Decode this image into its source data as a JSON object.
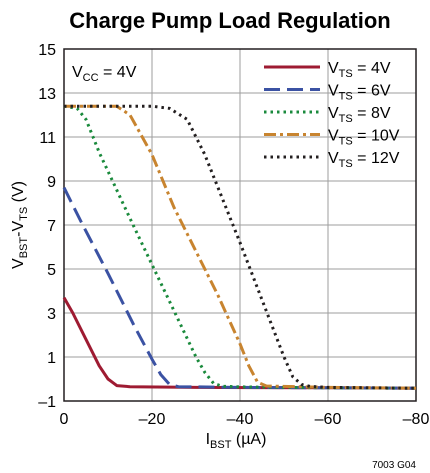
{
  "chart_data": {
    "type": "line",
    "title": "Charge Pump Load Regulation",
    "xlabel": {
      "main": "I",
      "sub": "BST",
      "unit": " (µA)"
    },
    "ylabel": {
      "main": "V",
      "sub": "BST",
      "mid": "-V",
      "sub2": "TS",
      "unit": " (V)"
    },
    "annotation": {
      "main": "V",
      "sub": "CC",
      "rest": " = 4V"
    },
    "figure_code": "7003 G04",
    "xlim": [
      0,
      -80
    ],
    "ylim": [
      -1,
      15
    ],
    "x_ticks": [
      0,
      -20,
      -40,
      -60,
      -80
    ],
    "x_tick_labels": [
      "0",
      "–20",
      "–40",
      "–60",
      "–80"
    ],
    "y_ticks": [
      -1,
      1,
      3,
      5,
      7,
      9,
      11,
      13,
      15
    ],
    "y_tick_labels": [
      "–1",
      "1",
      "3",
      "5",
      "7",
      "9",
      "11",
      "13",
      "15"
    ],
    "grid": true,
    "legend_position": "top-right",
    "series": [
      {
        "name": "V_TS = 4V",
        "label_main": "V",
        "label_sub": "TS",
        "label_rest": " = 4V",
        "color": "#9e1b32",
        "dash": "solid",
        "x": [
          0,
          -2,
          -5,
          -8,
          -10,
          -12,
          -15,
          -30,
          -60,
          -80
        ],
        "y": [
          3.7,
          3.0,
          1.8,
          0.6,
          0.0,
          -0.3,
          -0.35,
          -0.38,
          -0.4,
          -0.42
        ]
      },
      {
        "name": "V_TS = 6V",
        "label_main": "V",
        "label_sub": "TS",
        "label_rest": " = 6V",
        "color": "#3b52a3",
        "dash": "longdash",
        "x": [
          0,
          -4,
          -10,
          -16,
          -20,
          -22,
          -24,
          -26,
          -40,
          -60,
          -80
        ],
        "y": [
          8.7,
          7.1,
          4.8,
          2.4,
          0.9,
          0.2,
          -0.25,
          -0.35,
          -0.38,
          -0.4,
          -0.42
        ]
      },
      {
        "name": "V_TS = 8V",
        "label_main": "V",
        "label_sub": "TS",
        "label_rest": " = 8V",
        "color": "#1a8a3c",
        "dash": "dotted",
        "x": [
          0,
          -3,
          -5,
          -8,
          -15,
          -20,
          -25,
          -30,
          -32,
          -34,
          -36,
          -40,
          -60,
          -80
        ],
        "y": [
          12.4,
          12.3,
          11.8,
          10.3,
          7.3,
          5.2,
          3.1,
          1.0,
          0.3,
          -0.2,
          -0.33,
          -0.36,
          -0.4,
          -0.42
        ]
      },
      {
        "name": "V_TS = 10V",
        "label_main": "V",
        "label_sub": "TS",
        "label_rest": " = 10V",
        "color": "#c8842f",
        "dash": "dashdot",
        "x": [
          0,
          -12,
          -15,
          -20,
          -25,
          -30,
          -35,
          -40,
          -42,
          -44,
          -46,
          -60,
          -80
        ],
        "y": [
          12.4,
          12.4,
          12.0,
          10.2,
          7.8,
          5.8,
          3.8,
          1.6,
          0.6,
          -0.15,
          -0.32,
          -0.38,
          -0.42
        ]
      },
      {
        "name": "V_TS = 12V",
        "label_main": "V",
        "label_sub": "TS",
        "label_rest": " = 12V",
        "color": "#231f20",
        "dash": "dotted",
        "x": [
          0,
          -20,
          -24,
          -28,
          -32,
          -36,
          -40,
          -45,
          -50,
          -52,
          -54,
          -56,
          -60,
          -80
        ],
        "y": [
          12.4,
          12.4,
          12.3,
          11.8,
          10.2,
          8.2,
          6.2,
          3.6,
          1.0,
          0.1,
          -0.25,
          -0.34,
          -0.38,
          -0.42
        ]
      }
    ]
  }
}
